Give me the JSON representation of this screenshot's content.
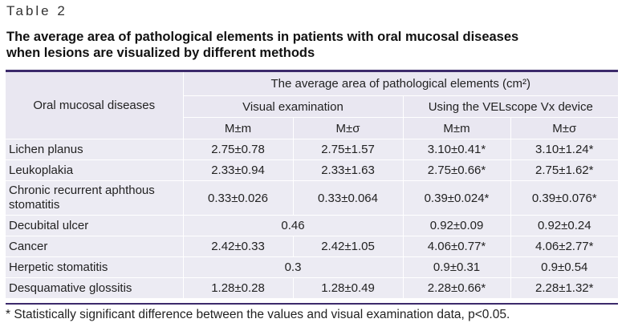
{
  "label": "Table 2",
  "title_lines": [
    "The average area of pathological elements in patients with oral mucosal diseases",
    "when lesions are visualized by different methods"
  ],
  "header": {
    "row_header": "Oral mucosal diseases",
    "group_header": "The average area of pathological elements (cm²)",
    "method_visual": "Visual examination",
    "method_velscope": "Using the VELscope Vx device",
    "stat_m_m": "M±m",
    "stat_m_sigma": "M±σ"
  },
  "rows": [
    {
      "disease": "Lichen planus",
      "v_mm": "2.75±0.78",
      "v_ms": "2.75±1.57",
      "d_mm": "3.10±0.41*",
      "d_ms": "3.10±1.24*"
    },
    {
      "disease": "Leukoplakia",
      "v_mm": "2.33±0.94",
      "v_ms": "2.33±1.63",
      "d_mm": "2.75±0.66*",
      "d_ms": "2.75±1.62*"
    },
    {
      "disease_line1": "Chronic recurrent aphthous",
      "disease_line2": "stomatitis",
      "v_mm": "0.33±0.026",
      "v_ms": "0.33±0.064",
      "d_mm": "0.39±0.024*",
      "d_ms": "0.39±0.076*"
    },
    {
      "disease": "Decubital ulcer",
      "v_merged": "0.46",
      "d_mm": "0.92±0.09",
      "d_ms": "0.92±0.24"
    },
    {
      "disease": "Cancer",
      "v_mm": "2.42±0.33",
      "v_ms": "2.42±1.05",
      "d_mm": "4.06±0.77*",
      "d_ms": "4.06±2.77*"
    },
    {
      "disease": "Herpetic stomatitis",
      "v_merged": "0.3",
      "d_mm": "0.9±0.31",
      "d_ms": "0.9±0.54"
    },
    {
      "disease": "Desquamative glossitis",
      "v_mm": "1.28±0.28",
      "v_ms": "1.28±0.49",
      "d_mm": "2.28±0.66*",
      "d_ms": "2.28±1.32*"
    }
  ],
  "footnote": "* Statistically significant difference between the values and visual examination data, p<0.05.",
  "colors": {
    "rule": "#3c2a6b",
    "cell_bg": "#ecebf3"
  }
}
